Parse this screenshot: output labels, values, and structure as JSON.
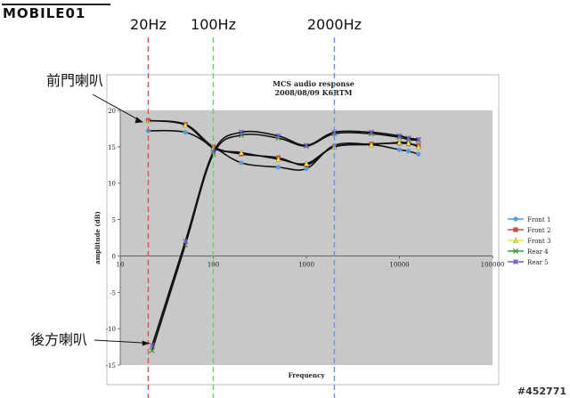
{
  "watermark": {
    "logo": "MOBILE01",
    "id": "#452771"
  },
  "markers": [
    {
      "label": "20Hz",
      "freq": 20,
      "color": "#d9534f"
    },
    {
      "label": "100Hz",
      "freq": 100,
      "color": "#5cd65c"
    },
    {
      "label": "2000Hz",
      "freq": 2000,
      "color": "#6f8fd8"
    }
  ],
  "callouts": [
    {
      "label": "前門喇叭",
      "target_x": 20,
      "target_y": 18.5
    },
    {
      "label": "後方喇叭",
      "target_x": 22,
      "target_y": -12
    }
  ],
  "chart_data": {
    "type": "line",
    "title": "MCS audio response",
    "subtitle": "2008/08/09 K6RTM",
    "xlabel": "Frequency",
    "ylabel": "amplitude (dB)",
    "xscale": "log",
    "xlim": [
      10,
      100000
    ],
    "ylim": [
      -15,
      20
    ],
    "xticks": [
      10,
      100,
      1000,
      10000,
      100000
    ],
    "yticks": [
      -15,
      -10,
      -5,
      0,
      5,
      10,
      15,
      20
    ],
    "xtick_labels": [
      "10",
      "100",
      "1000",
      "10000",
      "100000"
    ],
    "ytick_labels": [
      "-15",
      "-10",
      "-5",
      "0",
      "5",
      "10",
      "15",
      "20"
    ],
    "legend_position": "right",
    "plot_background": "#c8c8c8",
    "series": [
      {
        "name": "Front 1",
        "color": "#5b9bd5",
        "marker": "circle",
        "x": [
          20,
          50,
          100,
          200,
          500,
          1000,
          2000,
          5000,
          10000,
          12500,
          16000
        ],
        "y": [
          17.2,
          17.0,
          15.0,
          12.8,
          12.2,
          12.0,
          15.2,
          15.3,
          14.6,
          14.4,
          14.0
        ]
      },
      {
        "name": "Front 2",
        "color": "#c0504d",
        "marker": "square",
        "x": [
          20,
          50,
          100,
          200,
          500,
          1000,
          2000,
          5000,
          10000,
          12500,
          16000
        ],
        "y": [
          18.6,
          18.1,
          15.0,
          14.0,
          13.5,
          12.5,
          15.0,
          15.4,
          15.5,
          15.4,
          15.2
        ]
      },
      {
        "name": "Front 3",
        "color": "#e8e84a",
        "marker": "triangle",
        "x": [
          20,
          50,
          100,
          200,
          500,
          1000,
          2000,
          5000,
          10000,
          12500,
          16000
        ],
        "y": [
          18.6,
          18.0,
          14.8,
          14.2,
          13.3,
          12.7,
          15.0,
          15.3,
          15.6,
          15.5,
          15.0
        ]
      },
      {
        "name": "Rear 4",
        "color": "#3a9a3a",
        "marker": "x",
        "x": [
          22,
          50,
          100,
          200,
          500,
          1000,
          2000,
          5000,
          10000,
          12500,
          16000
        ],
        "y": [
          -13.0,
          1.5,
          14.0,
          16.6,
          16.2,
          15.1,
          16.8,
          16.8,
          16.3,
          16.0,
          15.9
        ]
      },
      {
        "name": "Rear 5",
        "color": "#7c5cc4",
        "marker": "star",
        "x": [
          22,
          50,
          100,
          200,
          500,
          1000,
          2000,
          5000,
          10000,
          12500,
          16000
        ],
        "y": [
          -12.3,
          2.0,
          14.3,
          17.0,
          16.5,
          15.2,
          17.0,
          17.0,
          16.5,
          16.2,
          16.0
        ]
      }
    ]
  }
}
